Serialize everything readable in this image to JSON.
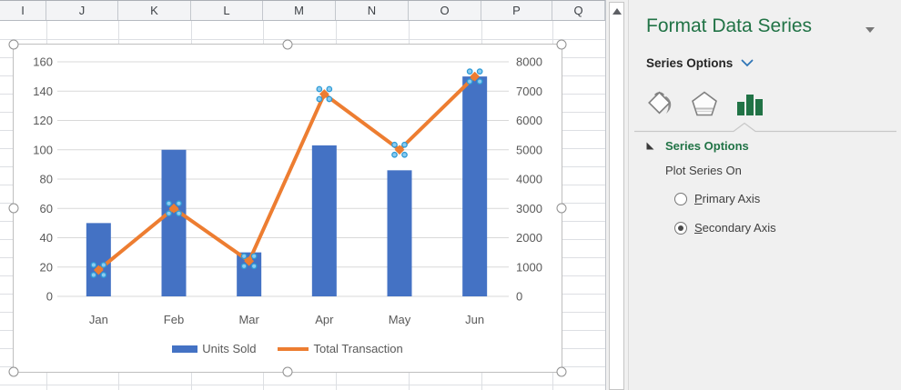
{
  "spreadsheet": {
    "column_headers": [
      "I",
      "J",
      "K",
      "L",
      "M",
      "N",
      "O",
      "P",
      "Q"
    ]
  },
  "chart_data": {
    "type": "combo",
    "title": "",
    "categories": [
      "Jan",
      "Feb",
      "Mar",
      "Apr",
      "May",
      "Jun"
    ],
    "series": [
      {
        "name": "Units Sold",
        "type": "bar",
        "axis": "primary",
        "color": "#4472C4",
        "values": [
          50,
          100,
          30,
          103,
          86,
          150
        ]
      },
      {
        "name": "Total Transaction",
        "type": "line",
        "axis": "secondary",
        "color": "#ED7D31",
        "values": [
          900,
          3000,
          1200,
          6900,
          5000,
          7500
        ],
        "points_selected": true
      }
    ],
    "left_axis": {
      "min": 0,
      "max": 160,
      "step": 20
    },
    "right_axis": {
      "min": 0,
      "max": 8000,
      "step": 1000
    },
    "legend_position": "bottom",
    "gridlines": "horizontal"
  },
  "panel": {
    "title": "Format Data Series",
    "target_dropdown_label": "Series Options",
    "tabs": [
      {
        "name": "fill-line",
        "selected": false
      },
      {
        "name": "effects",
        "selected": false
      },
      {
        "name": "series-options",
        "selected": true
      }
    ],
    "section": {
      "header": "Series Options",
      "plot_series_on_label": "Plot Series On",
      "radios": [
        {
          "label": "Primary Axis",
          "selected": false
        },
        {
          "label": "Secondary Axis",
          "selected": true
        }
      ]
    }
  },
  "colors": {
    "excel_green": "#217346",
    "chevron_blue": "#2E75B6",
    "bar_blue": "#4472C4",
    "line_orange": "#ED7D31",
    "selection_dot_fill": "#8CCBF0",
    "selection_dot_stroke": "#2E9BD6",
    "axis_text": "#595959"
  }
}
